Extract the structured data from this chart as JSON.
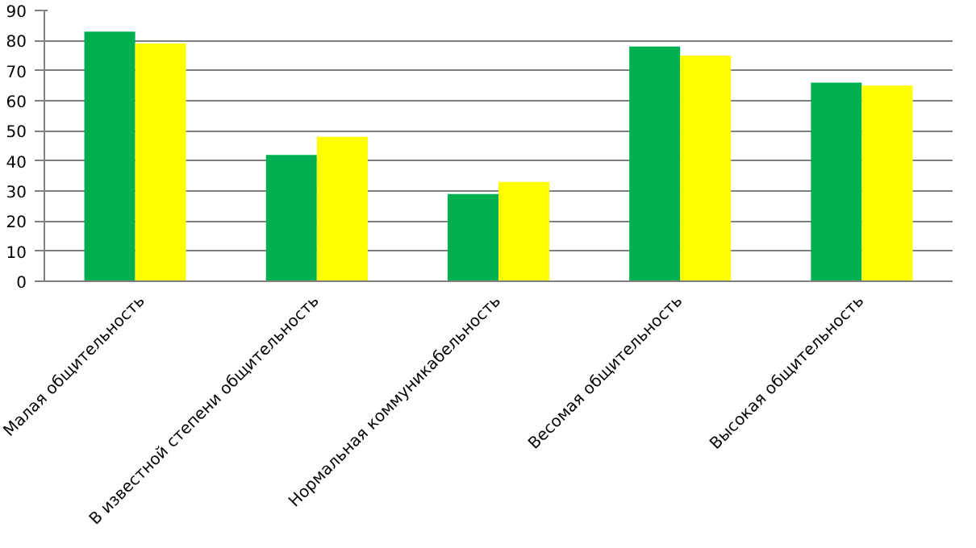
{
  "chart_data": {
    "type": "bar",
    "categories": [
      "Малая общительность",
      "В известной степени общительность",
      "Нормальная коммуникабельность",
      "Весомая общительность",
      "Высокая общительность"
    ],
    "series": [
      {
        "color": "#00b050",
        "values": [
          83,
          42,
          29,
          78,
          66
        ]
      },
      {
        "color": "#ffff00",
        "values": [
          79,
          48,
          33,
          75,
          65
        ]
      }
    ],
    "ylim": [
      0,
      90
    ],
    "yticks": [
      0,
      10,
      20,
      30,
      40,
      50,
      60,
      70,
      80,
      90
    ],
    "grid": "y"
  }
}
